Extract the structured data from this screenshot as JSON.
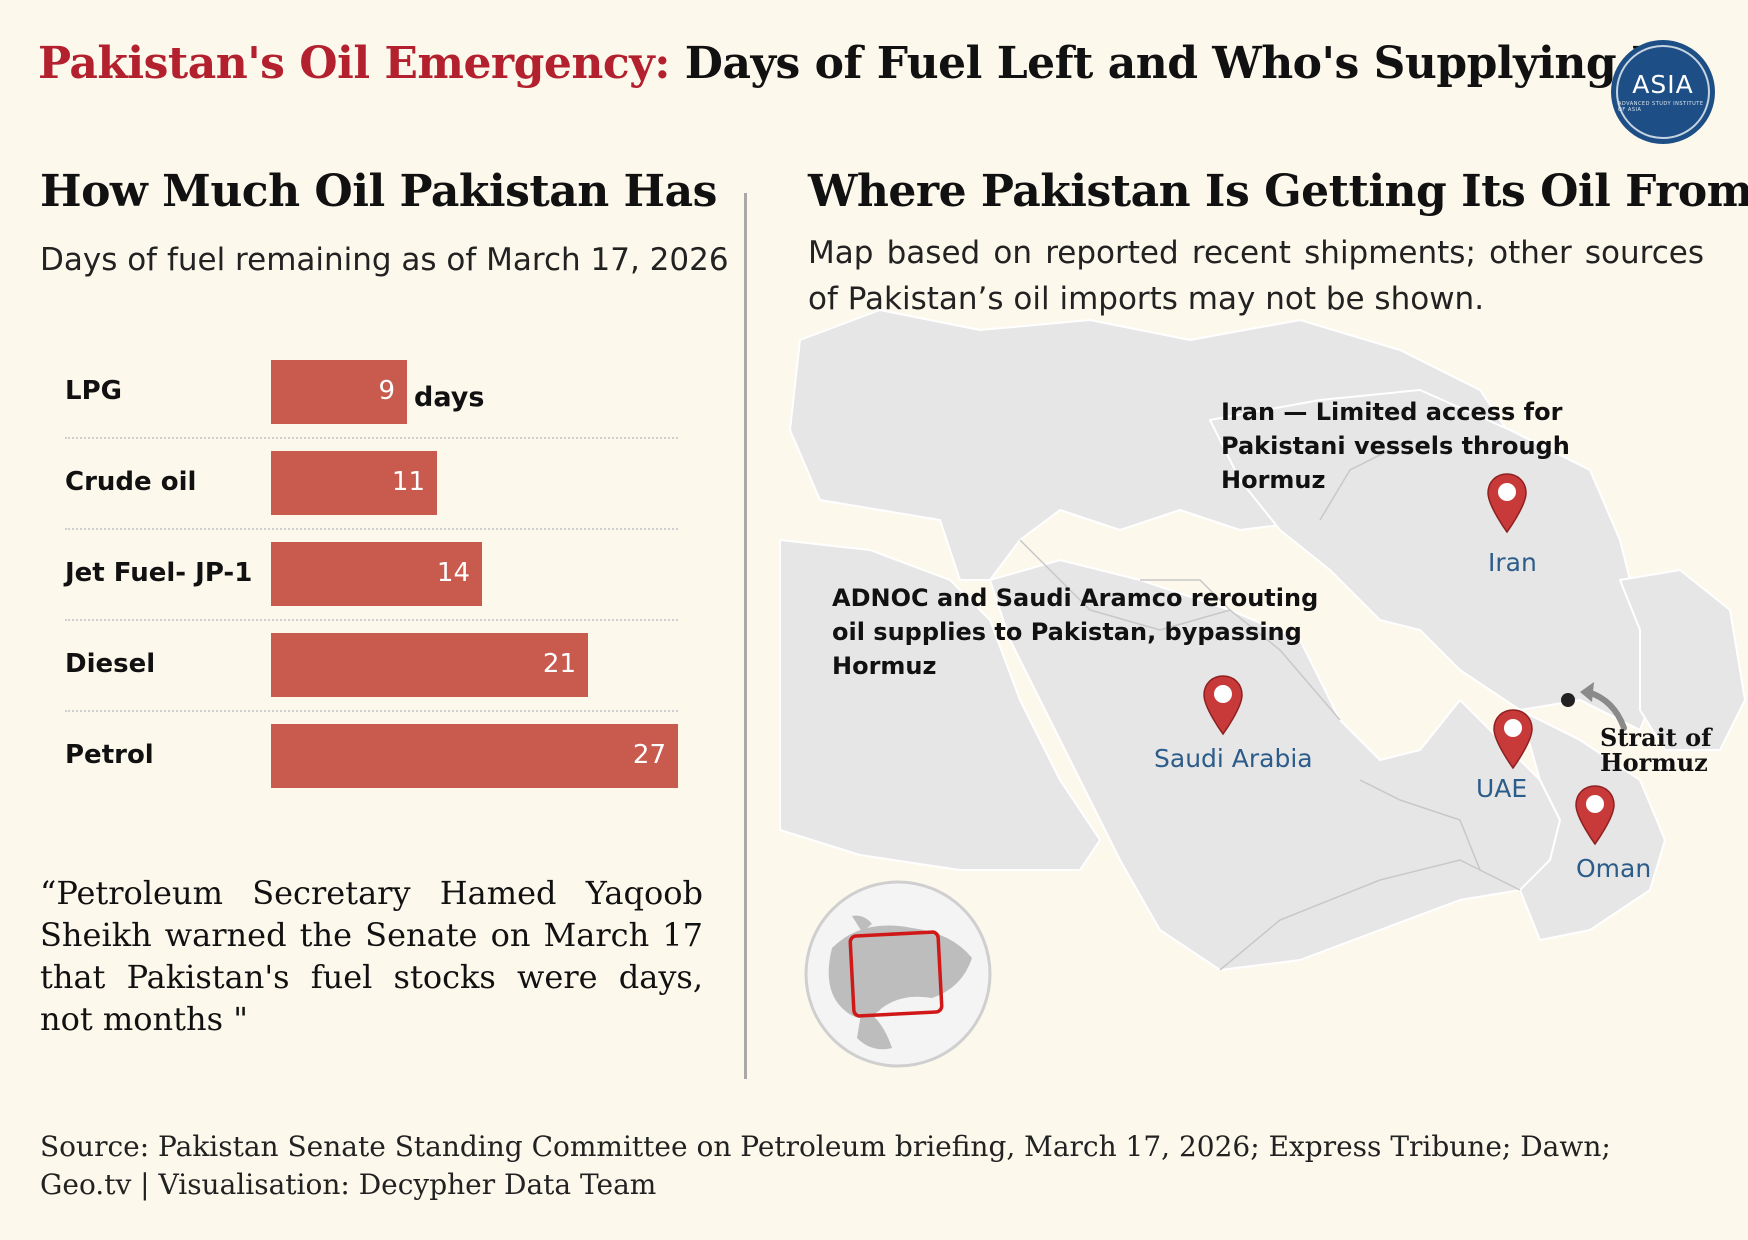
{
  "header": {
    "title_highlight": "Pakistan's Oil Emergency:",
    "title_rest": "Days of Fuel Left and Who's Supplying It",
    "logo_text": "ASIA",
    "logo_subtext": "ADVANCED STUDY INSTITUTE OF ASIA"
  },
  "left": {
    "heading": "How Much Oil Pakistan Has",
    "subtitle": "Days of fuel remaining as of March 17, 2026",
    "quote": "“Petroleum Secretary Hamed Yaqoob Sheikh warned the Senate on March 17 that Pakistan's fuel stocks were days, not months \""
  },
  "right": {
    "heading": "Where Pakistan Is Getting Its Oil From",
    "subtitle": "Map based on reported recent shipments; other sources of Pakistan’s oil imports may not be shown.",
    "annotation_iran": "Iran — Limited access for Pakistani vessels through Hormuz",
    "annotation_gulf": "ADNOC and Saudi Aramco rerouting oil supplies to Pakistan, bypassing Hormuz",
    "pins": {
      "iran": "Iran",
      "saudi": "Saudi Arabia",
      "uae": "UAE",
      "oman": "Oman"
    },
    "strait_line1": "Strait of",
    "strait_line2": "Hormuz"
  },
  "source": "Source: Pakistan Senate Standing Committee on Petroleum briefing, March 17, 2026; Express Tribune; Dawn; Geo.tv  | Visualisation: Decypher Data Team",
  "colors": {
    "bar": "#c85a4e",
    "highlight": "#b3202e",
    "pin": "#c83a3a",
    "map_land": "#e6e6e6",
    "logo": "#1d4f86"
  },
  "chart_data": {
    "type": "bar",
    "orientation": "horizontal",
    "categories": [
      "LPG",
      "Crude oil",
      "Jet Fuel- JP-1",
      "Diesel",
      "Petrol"
    ],
    "values": [
      9,
      11,
      14,
      21,
      27
    ],
    "unit_label": "days",
    "xlim": [
      0,
      27
    ]
  }
}
